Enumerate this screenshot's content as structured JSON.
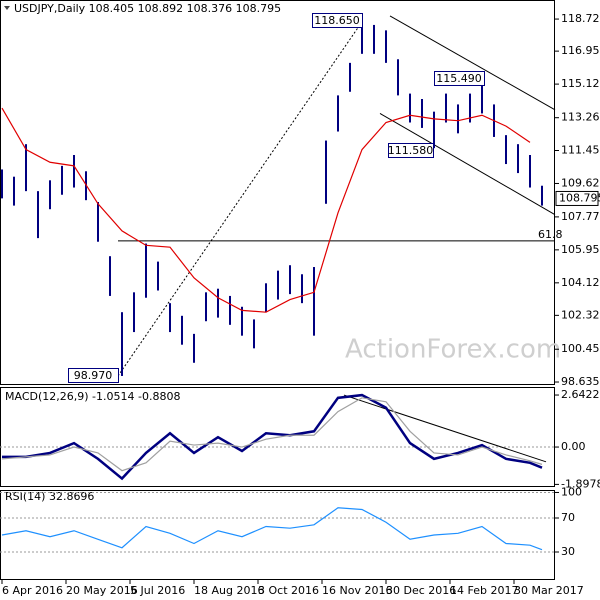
{
  "chart_data": [
    {
      "type": "ohlc",
      "title": "USDJPY,Daily  108.405 108.892 108.376 108.795",
      "color": "#000080",
      "xlim": [
        -1,
        276.5
      ],
      "ylim": [
        98.47,
        119.78
      ],
      "yticks": [
        118.725,
        {
          "value": 116.95,
          "label": "116.950"
        },
        115.125,
        113.265,
        {
          "value": 111.45,
          "label": "111.450"
        },
        109.625,
        107.775,
        {
          "value": 105.95,
          "label": "105.950"
        },
        104.125,
        102.325,
        {
          "value": 100.45,
          "label": "100.450"
        },
        98.635
      ],
      "x": [
        0,
        6,
        12,
        18,
        24,
        30,
        36,
        42,
        48,
        54,
        60,
        66,
        72,
        78,
        84,
        90,
        96,
        102,
        108,
        114,
        120,
        126,
        132,
        138,
        144,
        150,
        156,
        162,
        168,
        174,
        180,
        186,
        192,
        198,
        204,
        210,
        216,
        222,
        228,
        234,
        240,
        246,
        252,
        258,
        264,
        270
      ],
      "high": [
        110.4,
        110.0,
        111.8,
        109.2,
        109.8,
        110.6,
        111.2,
        110.3,
        108.6,
        105.6,
        102.5,
        103.6,
        106.3,
        105.3,
        103.0,
        102.3,
        101.3,
        103.6,
        103.8,
        103.4,
        102.8,
        102.1,
        104.1,
        104.8,
        105.1,
        104.6,
        105.0,
        112.0,
        114.5,
        116.3,
        118.65,
        118.4,
        118.1,
        116.5,
        114.6,
        114.3,
        113.6,
        114.6,
        114.0,
        114.6,
        115.49,
        114.0,
        112.3,
        111.8,
        111.2,
        109.5
      ],
      "low": [
        108.8,
        108.4,
        109.2,
        106.6,
        108.2,
        109.0,
        109.4,
        108.7,
        106.4,
        103.4,
        98.97,
        101.4,
        103.3,
        103.7,
        101.4,
        100.7,
        99.7,
        102.0,
        102.2,
        101.8,
        101.2,
        100.5,
        102.5,
        103.2,
        103.5,
        103.0,
        101.2,
        108.5,
        112.5,
        114.7,
        116.8,
        116.8,
        116.3,
        114.5,
        113.0,
        112.7,
        111.58,
        113.0,
        112.4,
        113.0,
        113.5,
        112.2,
        110.7,
        110.2,
        109.4,
        108.4
      ],
      "series": [
        {
          "color": "#e00000",
          "x": [
            0,
            12,
            24,
            36,
            48,
            60,
            72,
            84,
            96,
            108,
            120,
            132,
            144,
            156,
            168,
            180,
            192,
            204,
            216,
            228,
            240,
            252,
            264
          ],
          "values": [
            113.8,
            111.5,
            110.8,
            110.6,
            108.5,
            107.0,
            106.2,
            106.1,
            104.4,
            103.3,
            102.6,
            102.5,
            103.2,
            103.6,
            108.0,
            111.5,
            113.0,
            113.4,
            113.2,
            113.1,
            113.4,
            112.8,
            111.9
          ]
        }
      ],
      "lines": [
        {
          "x": [
            58,
            180.5
          ],
          "y": [
            98.97,
            118.65
          ],
          "style": "dotted"
        },
        {
          "x": [
            194,
            276.5
          ],
          "y": [
            118.9,
            113.7
          ],
          "style": "solid"
        },
        {
          "x": [
            189,
            276.5
          ],
          "y": [
            113.5,
            107.9
          ],
          "style": "solid"
        },
        {
          "x": [
            58,
            276.5
          ],
          "y": [
            106.45,
            106.45
          ],
          "style": "solid"
        }
      ],
      "annotations": [
        {
          "label": "118.650"
        },
        {
          "label": "115.490"
        },
        {
          "label": "111.580"
        },
        {
          "label": "98.970"
        },
        {
          "label": "61.8"
        }
      ],
      "last": 108.795,
      "last_label": "108.795",
      "watermark": "ActionForex.com"
    },
    {
      "type": "line",
      "title": "MACD(12,26,9) -1.0514 -0.8808",
      "xlim": [
        -1,
        276.5
      ],
      "ylim": [
        -2.03,
        3.05
      ],
      "yticks": [
        2.6422,
        {
          "value": 0,
          "label": "0.00"
        },
        -1.8978
      ],
      "x": [
        0,
        12,
        24,
        36,
        48,
        60,
        72,
        84,
        96,
        108,
        120,
        132,
        144,
        156,
        168,
        180,
        192,
        204,
        216,
        228,
        240,
        252,
        264,
        270
      ],
      "series": [
        {
          "color": "#000080",
          "values": [
            -0.5,
            -0.5,
            -0.3,
            0.2,
            -0.6,
            -1.6,
            -0.3,
            0.7,
            -0.3,
            0.5,
            -0.2,
            0.7,
            0.6,
            0.8,
            2.5,
            2.64,
            2.0,
            0.2,
            -0.6,
            -0.3,
            0.1,
            -0.6,
            -0.8,
            -1.05
          ]
        },
        {
          "color": "#a0a0a0",
          "values": [
            -0.6,
            -0.5,
            -0.4,
            0.0,
            -0.3,
            -1.2,
            -0.8,
            0.3,
            0.1,
            0.2,
            0.0,
            0.4,
            0.6,
            0.6,
            1.8,
            2.5,
            2.3,
            0.8,
            -0.3,
            -0.4,
            0.0,
            -0.4,
            -0.7,
            -0.88
          ]
        }
      ],
      "lines": [
        {
          "x": [
            171,
            272
          ],
          "y": [
            2.64,
            -0.75
          ],
          "style": "solid"
        }
      ]
    },
    {
      "type": "line",
      "title": "RSI(14) 32.8696",
      "xlim": [
        -1,
        276.5
      ],
      "ylim": [
        -2.9,
        102.9
      ],
      "yticks": [
        100,
        70,
        30
      ],
      "xticks": [
        {
          "value": 0,
          "label": "6 Apr 2016"
        },
        {
          "value": 32,
          "label": "20 May 2016"
        },
        {
          "value": 64,
          "label": "5 Jul 2016"
        },
        {
          "value": 96,
          "label": "18 Aug 2016"
        },
        {
          "value": 128,
          "label": "3 Oct 2016"
        },
        {
          "value": 160,
          "label": "16 Nov 2016"
        },
        {
          "value": 192,
          "label": "30 Dec 2016"
        },
        {
          "value": 224,
          "label": "14 Feb 2017"
        },
        {
          "value": 256,
          "label": "30 Mar 2017"
        }
      ],
      "x": [
        0,
        12,
        24,
        36,
        48,
        60,
        72,
        84,
        96,
        108,
        120,
        132,
        144,
        156,
        168,
        180,
        192,
        204,
        216,
        228,
        240,
        252,
        264,
        270
      ],
      "series": [
        {
          "color": "#1e90ff",
          "values": [
            50,
            55,
            48,
            55,
            45,
            35,
            60,
            52,
            40,
            55,
            48,
            60,
            58,
            62,
            82,
            80,
            65,
            45,
            50,
            52,
            60,
            40,
            38,
            32.8
          ]
        }
      ]
    }
  ]
}
